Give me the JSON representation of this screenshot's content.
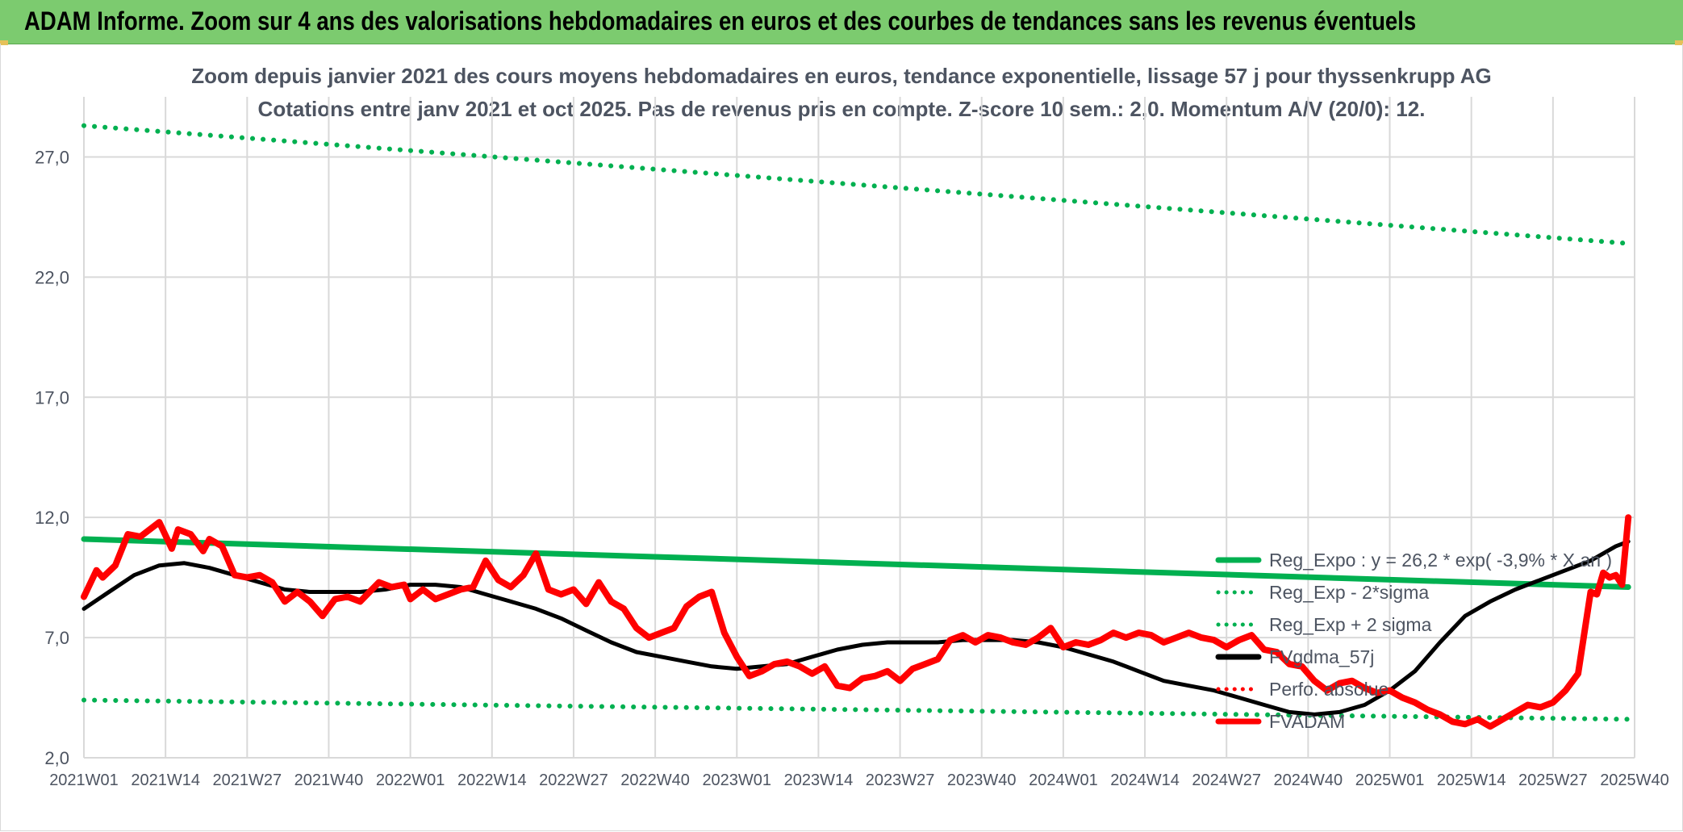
{
  "header": {
    "title": "ADAM Informe. Zoom sur 4 ans des valorisations hebdomadaires en euros et des courbes de tendances sans les revenus éventuels"
  },
  "chart_data": {
    "type": "line",
    "title": "Zoom depuis janvier 2021 des cours moyens hebdomadaires en euros, tendance exponentielle, lissage 57 j pour thyssenkrupp AG",
    "subtitle": "Cotations entre janv 2021 et oct 2025. Pas de revenus pris en compte. Z-score 10 sem.: 2,0. Momentum A/V (20/0): 12.",
    "x_ticks": [
      "2021W01",
      "2021W14",
      "2021W27",
      "2021W40",
      "2022W01",
      "2022W14",
      "2022W27",
      "2022W40",
      "2023W01",
      "2023W14",
      "2023W27",
      "2023W40",
      "2024W01",
      "2024W14",
      "2024W27",
      "2024W40",
      "2025W01",
      "2025W14",
      "2025W27",
      "2025W40"
    ],
    "y_ticks": [
      "2,0",
      "7,0",
      "12,0",
      "17,0",
      "22,0",
      "27,0"
    ],
    "ylim": [
      2,
      29.5
    ],
    "grid": true,
    "legend_position": "bottom-right",
    "series": [
      {
        "name": "Reg_Expo : y = 26,2 * exp( -3,9% * X an )",
        "color": "#00b050",
        "style": "solid",
        "points": [
          [
            0,
            11.1
          ],
          [
            246,
            9.1
          ]
        ]
      },
      {
        "name": "Reg_Exp - 2*sigma",
        "color": "#00b050",
        "style": "dotted",
        "points": [
          [
            0,
            4.4
          ],
          [
            246,
            3.6
          ]
        ]
      },
      {
        "name": "Reg_Exp + 2 sigma",
        "color": "#00b050",
        "style": "dotted",
        "points": [
          [
            0,
            28.3
          ],
          [
            246,
            23.4
          ]
        ]
      },
      {
        "name": "FVgdma_57j",
        "color": "#000000",
        "style": "solid",
        "points": [
          [
            0,
            8.2
          ],
          [
            4,
            8.9
          ],
          [
            8,
            9.6
          ],
          [
            12,
            10.0
          ],
          [
            16,
            10.1
          ],
          [
            20,
            9.9
          ],
          [
            24,
            9.6
          ],
          [
            28,
            9.3
          ],
          [
            32,
            9.0
          ],
          [
            36,
            8.9
          ],
          [
            40,
            8.9
          ],
          [
            44,
            8.9
          ],
          [
            48,
            9.0
          ],
          [
            52,
            9.2
          ],
          [
            56,
            9.2
          ],
          [
            60,
            9.1
          ],
          [
            64,
            8.8
          ],
          [
            68,
            8.5
          ],
          [
            72,
            8.2
          ],
          [
            76,
            7.8
          ],
          [
            80,
            7.3
          ],
          [
            84,
            6.8
          ],
          [
            88,
            6.4
          ],
          [
            92,
            6.2
          ],
          [
            96,
            6.0
          ],
          [
            100,
            5.8
          ],
          [
            104,
            5.7
          ],
          [
            108,
            5.8
          ],
          [
            112,
            5.9
          ],
          [
            116,
            6.2
          ],
          [
            120,
            6.5
          ],
          [
            124,
            6.7
          ],
          [
            128,
            6.8
          ],
          [
            132,
            6.8
          ],
          [
            136,
            6.8
          ],
          [
            140,
            6.9
          ],
          [
            144,
            6.9
          ],
          [
            148,
            6.9
          ],
          [
            152,
            6.8
          ],
          [
            156,
            6.6
          ],
          [
            160,
            6.3
          ],
          [
            164,
            6.0
          ],
          [
            168,
            5.6
          ],
          [
            172,
            5.2
          ],
          [
            176,
            5.0
          ],
          [
            180,
            4.8
          ],
          [
            184,
            4.5
          ],
          [
            188,
            4.2
          ],
          [
            192,
            3.9
          ],
          [
            196,
            3.8
          ],
          [
            200,
            3.9
          ],
          [
            204,
            4.2
          ],
          [
            208,
            4.8
          ],
          [
            212,
            5.6
          ],
          [
            216,
            6.8
          ],
          [
            220,
            7.9
          ],
          [
            224,
            8.5
          ],
          [
            228,
            9.0
          ],
          [
            232,
            9.4
          ],
          [
            236,
            9.8
          ],
          [
            240,
            10.2
          ],
          [
            244,
            10.8
          ],
          [
            246,
            11.0
          ]
        ]
      },
      {
        "name": "Perfo. absolue",
        "color": "#ff0000",
        "style": "dotted",
        "points": []
      },
      {
        "name": "FVADAM",
        "color": "#ff0000",
        "style": "solid",
        "points": [
          [
            0,
            8.7
          ],
          [
            2,
            9.8
          ],
          [
            3,
            9.5
          ],
          [
            5,
            10.0
          ],
          [
            7,
            11.3
          ],
          [
            9,
            11.2
          ],
          [
            12,
            11.8
          ],
          [
            14,
            10.7
          ],
          [
            15,
            11.5
          ],
          [
            17,
            11.3
          ],
          [
            19,
            10.6
          ],
          [
            20,
            11.1
          ],
          [
            22,
            10.8
          ],
          [
            24,
            9.6
          ],
          [
            26,
            9.5
          ],
          [
            28,
            9.6
          ],
          [
            30,
            9.3
          ],
          [
            32,
            8.5
          ],
          [
            34,
            8.9
          ],
          [
            36,
            8.5
          ],
          [
            38,
            7.9
          ],
          [
            40,
            8.6
          ],
          [
            42,
            8.7
          ],
          [
            44,
            8.5
          ],
          [
            47,
            9.3
          ],
          [
            49,
            9.1
          ],
          [
            51,
            9.2
          ],
          [
            52,
            8.6
          ],
          [
            54,
            9.0
          ],
          [
            56,
            8.6
          ],
          [
            58,
            8.8
          ],
          [
            60,
            9.0
          ],
          [
            62,
            9.1
          ],
          [
            64,
            10.2
          ],
          [
            66,
            9.4
          ],
          [
            68,
            9.1
          ],
          [
            70,
            9.6
          ],
          [
            72,
            10.5
          ],
          [
            74,
            9.0
          ],
          [
            76,
            8.8
          ],
          [
            78,
            9.0
          ],
          [
            80,
            8.4
          ],
          [
            82,
            9.3
          ],
          [
            84,
            8.5
          ],
          [
            86,
            8.2
          ],
          [
            88,
            7.4
          ],
          [
            90,
            7.0
          ],
          [
            92,
            7.2
          ],
          [
            94,
            7.4
          ],
          [
            96,
            8.3
          ],
          [
            98,
            8.7
          ],
          [
            100,
            8.9
          ],
          [
            102,
            7.2
          ],
          [
            104,
            6.2
          ],
          [
            106,
            5.4
          ],
          [
            108,
            5.6
          ],
          [
            110,
            5.9
          ],
          [
            112,
            6.0
          ],
          [
            114,
            5.8
          ],
          [
            116,
            5.5
          ],
          [
            118,
            5.8
          ],
          [
            120,
            5.0
          ],
          [
            122,
            4.9
          ],
          [
            124,
            5.3
          ],
          [
            126,
            5.4
          ],
          [
            128,
            5.6
          ],
          [
            130,
            5.2
          ],
          [
            132,
            5.7
          ],
          [
            134,
            5.9
          ],
          [
            136,
            6.1
          ],
          [
            138,
            6.9
          ],
          [
            140,
            7.1
          ],
          [
            142,
            6.8
          ],
          [
            144,
            7.1
          ],
          [
            146,
            7.0
          ],
          [
            148,
            6.8
          ],
          [
            150,
            6.7
          ],
          [
            152,
            7.0
          ],
          [
            154,
            7.4
          ],
          [
            156,
            6.6
          ],
          [
            158,
            6.8
          ],
          [
            160,
            6.7
          ],
          [
            162,
            6.9
          ],
          [
            164,
            7.2
          ],
          [
            166,
            7.0
          ],
          [
            168,
            7.2
          ],
          [
            170,
            7.1
          ],
          [
            172,
            6.8
          ],
          [
            174,
            7.0
          ],
          [
            176,
            7.2
          ],
          [
            178,
            7.0
          ],
          [
            180,
            6.9
          ],
          [
            182,
            6.6
          ],
          [
            184,
            6.9
          ],
          [
            186,
            7.1
          ],
          [
            188,
            6.5
          ],
          [
            190,
            6.4
          ],
          [
            192,
            5.9
          ],
          [
            194,
            5.8
          ],
          [
            196,
            5.2
          ],
          [
            198,
            4.8
          ],
          [
            200,
            5.1
          ],
          [
            202,
            5.2
          ],
          [
            204,
            4.9
          ],
          [
            206,
            4.7
          ],
          [
            208,
            4.8
          ],
          [
            210,
            4.5
          ],
          [
            212,
            4.3
          ],
          [
            214,
            4.0
          ],
          [
            216,
            3.8
          ],
          [
            218,
            3.5
          ],
          [
            220,
            3.4
          ],
          [
            222,
            3.6
          ],
          [
            224,
            3.3
          ],
          [
            226,
            3.6
          ],
          [
            228,
            3.9
          ],
          [
            230,
            4.2
          ],
          [
            232,
            4.1
          ],
          [
            234,
            4.3
          ],
          [
            236,
            4.8
          ],
          [
            238,
            5.5
          ],
          [
            240,
            8.9
          ],
          [
            241,
            8.8
          ],
          [
            242,
            9.7
          ],
          [
            243,
            9.5
          ],
          [
            244,
            9.6
          ],
          [
            245,
            9.2
          ],
          [
            246,
            12.0
          ]
        ]
      }
    ]
  }
}
